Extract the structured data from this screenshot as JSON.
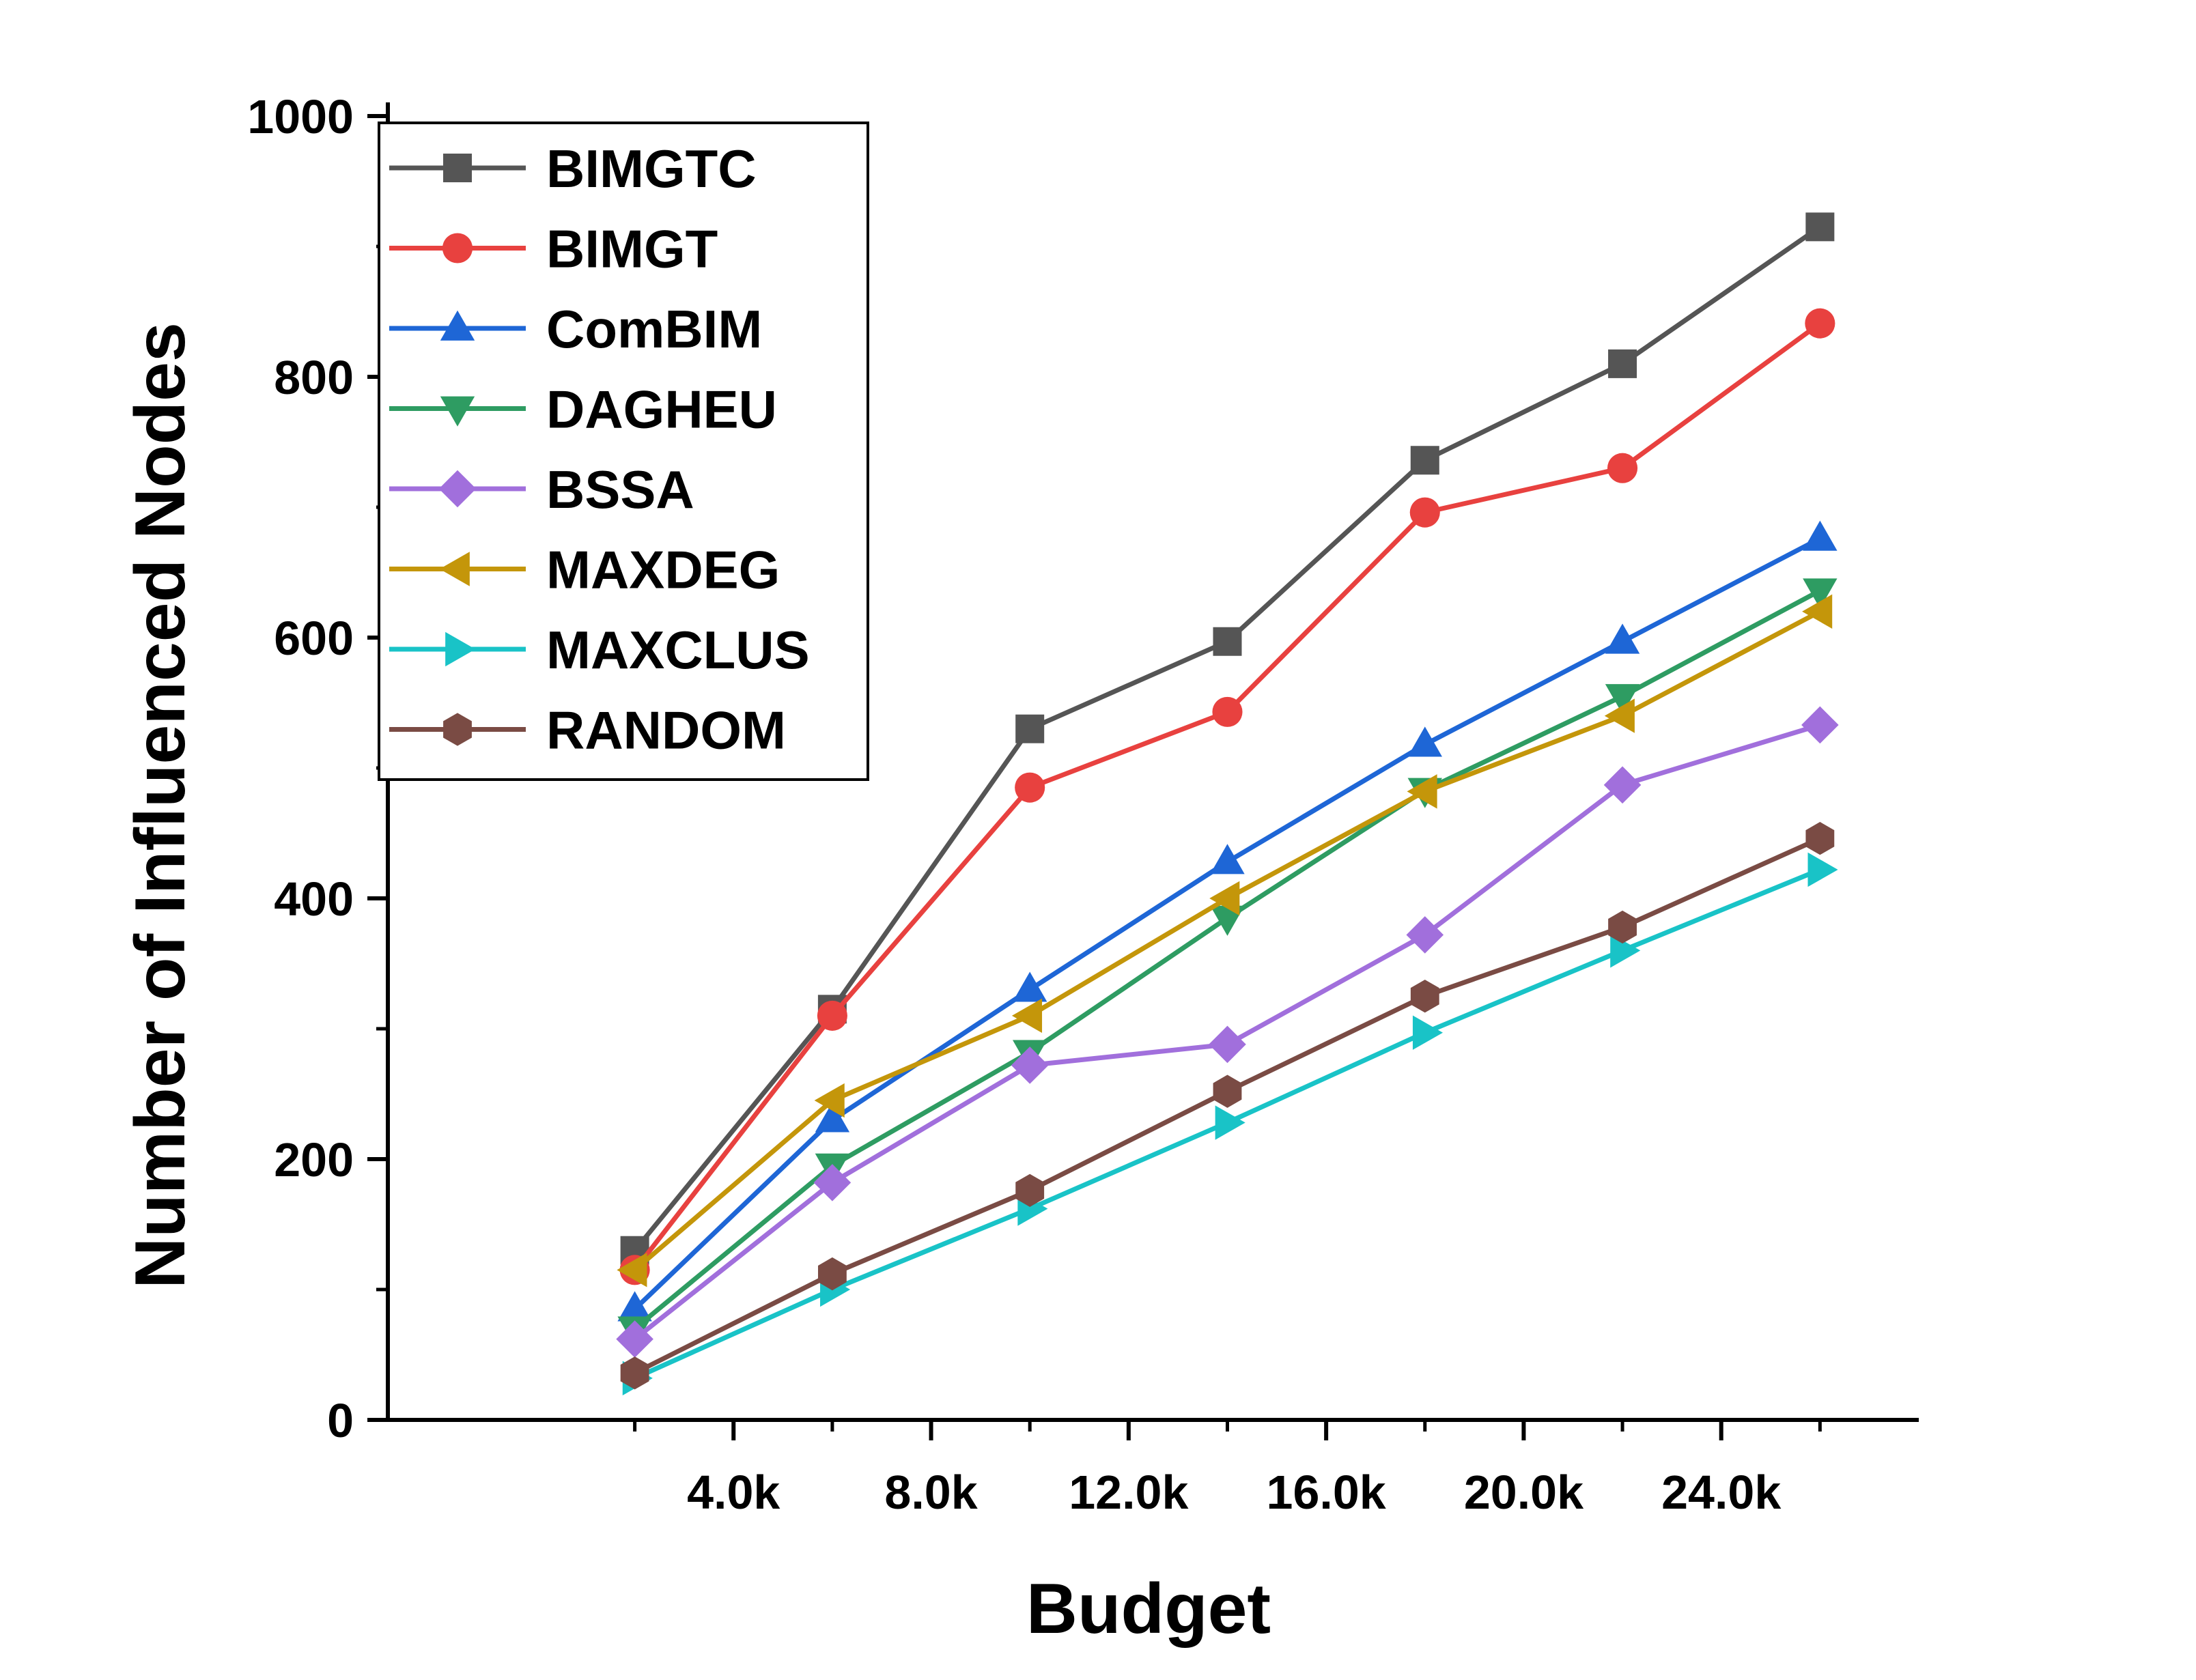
{
  "chart_data": {
    "type": "line",
    "title": "",
    "xlabel": "Budget",
    "ylabel": "Number of Influenced Nodes",
    "x": [
      2000,
      6000,
      10000,
      14000,
      18000,
      22000,
      26000
    ],
    "xlim": [
      -3000,
      28000
    ],
    "ylim": [
      0,
      1000
    ],
    "x_ticks": [
      {
        "value": 4000,
        "label": "4.0k"
      },
      {
        "value": 8000,
        "label": "8.0k"
      },
      {
        "value": 12000,
        "label": "12.0k"
      },
      {
        "value": 16000,
        "label": "16.0k"
      },
      {
        "value": 20000,
        "label": "20.0k"
      },
      {
        "value": 24000,
        "label": "24.0k"
      }
    ],
    "y_ticks": [
      {
        "value": 0,
        "label": "0"
      },
      {
        "value": 200,
        "label": "200"
      },
      {
        "value": 400,
        "label": "400"
      },
      {
        "value": 600,
        "label": "600"
      },
      {
        "value": 800,
        "label": "800"
      },
      {
        "value": 1000,
        "label": "1000"
      }
    ],
    "grid": false,
    "legend_position": "top-left",
    "series": [
      {
        "name": "BIMGTC",
        "color": "#555555",
        "marker": "square",
        "values": [
          130,
          315,
          530,
          597,
          736,
          810,
          915
        ]
      },
      {
        "name": "BIMGT",
        "color": "#e8413f",
        "marker": "circle",
        "values": [
          115,
          310,
          485,
          543,
          696,
          730,
          841
        ]
      },
      {
        "name": "ComBIM",
        "color": "#1e66d6",
        "marker": "triangle-up",
        "values": [
          85,
          230,
          330,
          428,
          518,
          597,
          676
        ]
      },
      {
        "name": "DAGHEU",
        "color": "#2e9c62",
        "marker": "triangle-down",
        "values": [
          70,
          195,
          282,
          385,
          483,
          555,
          636
        ]
      },
      {
        "name": "BSSA",
        "color": "#a16fdc",
        "marker": "diamond",
        "values": [
          62,
          182,
          272,
          288,
          372,
          487,
          533
        ]
      },
      {
        "name": "MAXDEG",
        "color": "#c4960a",
        "marker": "triangle-left",
        "values": [
          115,
          245,
          310,
          400,
          482,
          540,
          620
        ]
      },
      {
        "name": "MAXCLUS",
        "color": "#19c3c7",
        "marker": "triangle-right",
        "values": [
          32,
          100,
          162,
          228,
          297,
          360,
          422
        ]
      },
      {
        "name": "RANDOM",
        "color": "#7a4b44",
        "marker": "hexagon",
        "values": [
          36,
          112,
          176,
          252,
          325,
          378,
          446
        ]
      }
    ]
  }
}
